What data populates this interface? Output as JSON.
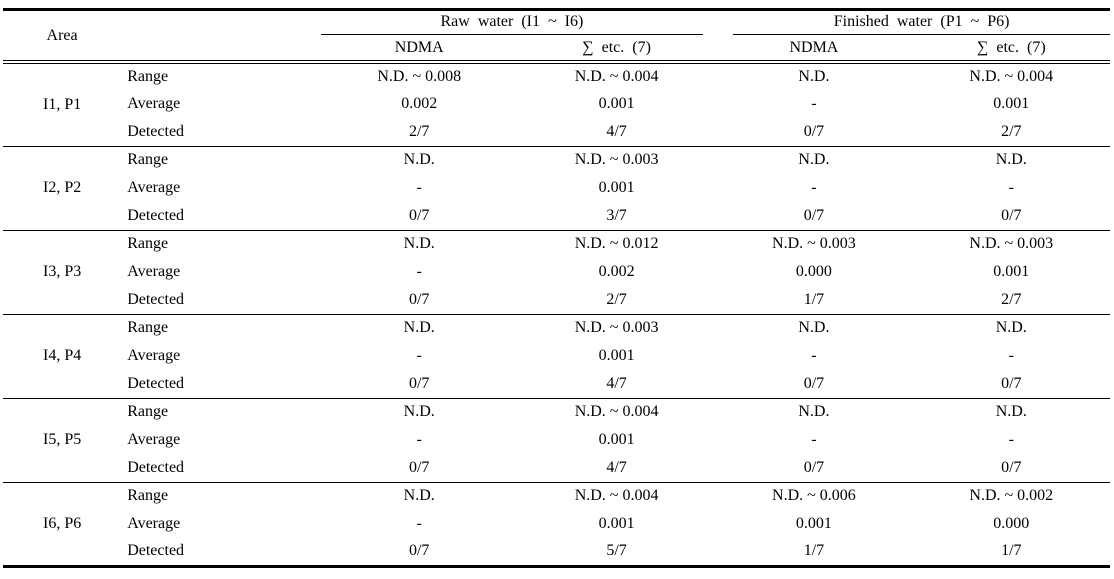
{
  "table": {
    "area_header": "Area",
    "groups": [
      {
        "label": "Raw water (I1 ~ I6)",
        "columns": [
          "NDMA",
          "∑ etc. (7)"
        ]
      },
      {
        "label": "Finished water (P1 ~ P6)",
        "columns": [
          "NDMA",
          "∑ etc. (7)"
        ]
      }
    ],
    "areas": [
      {
        "name": "I1, P1",
        "rows": [
          {
            "label": "Range",
            "values": [
              "N.D. ~ 0.008",
              "N.D. ~ 0.004",
              "N.D.",
              "N.D. ~ 0.004"
            ]
          },
          {
            "label": "Average",
            "values": [
              "0.002",
              "0.001",
              "-",
              "0.001"
            ]
          },
          {
            "label": "Detected",
            "values": [
              "2/7",
              "4/7",
              "0/7",
              "2/7"
            ]
          }
        ]
      },
      {
        "name": "I2, P2",
        "rows": [
          {
            "label": "Range",
            "values": [
              "N.D.",
              "N.D. ~ 0.003",
              "N.D.",
              "N.D."
            ]
          },
          {
            "label": "Average",
            "values": [
              "-",
              "0.001",
              "-",
              "-"
            ]
          },
          {
            "label": "Detected",
            "values": [
              "0/7",
              "3/7",
              "0/7",
              "0/7"
            ]
          }
        ]
      },
      {
        "name": "I3, P3",
        "rows": [
          {
            "label": "Range",
            "values": [
              "N.D.",
              "N.D. ~ 0.012",
              "N.D. ~ 0.003",
              "N.D. ~ 0.003"
            ]
          },
          {
            "label": "Average",
            "values": [
              "-",
              "0.002",
              "0.000",
              "0.001"
            ]
          },
          {
            "label": "Detected",
            "values": [
              "0/7",
              "2/7",
              "1/7",
              "2/7"
            ]
          }
        ]
      },
      {
        "name": "I4, P4",
        "rows": [
          {
            "label": "Range",
            "values": [
              "N.D.",
              "N.D. ~ 0.003",
              "N.D.",
              "N.D."
            ]
          },
          {
            "label": "Average",
            "values": [
              "-",
              "0.001",
              "-",
              "-"
            ]
          },
          {
            "label": "Detected",
            "values": [
              "0/7",
              "4/7",
              "0/7",
              "0/7"
            ]
          }
        ]
      },
      {
        "name": "I5, P5",
        "rows": [
          {
            "label": "Range",
            "values": [
              "N.D.",
              "N.D. ~ 0.004",
              "N.D.",
              "N.D."
            ]
          },
          {
            "label": "Average",
            "values": [
              "-",
              "0.001",
              "-",
              "-"
            ]
          },
          {
            "label": "Detected",
            "values": [
              "0/7",
              "4/7",
              "0/7",
              "0/7"
            ]
          }
        ]
      },
      {
        "name": "I6, P6",
        "rows": [
          {
            "label": "Range",
            "values": [
              "N.D.",
              "N.D. ~ 0.004",
              "N.D. ~ 0.006",
              "N.D. ~ 0.002"
            ]
          },
          {
            "label": "Average",
            "values": [
              "-",
              "0.001",
              "0.001",
              "0.000"
            ]
          },
          {
            "label": "Detected",
            "values": [
              "0/7",
              "5/7",
              "1/7",
              "1/7"
            ]
          }
        ]
      }
    ]
  }
}
